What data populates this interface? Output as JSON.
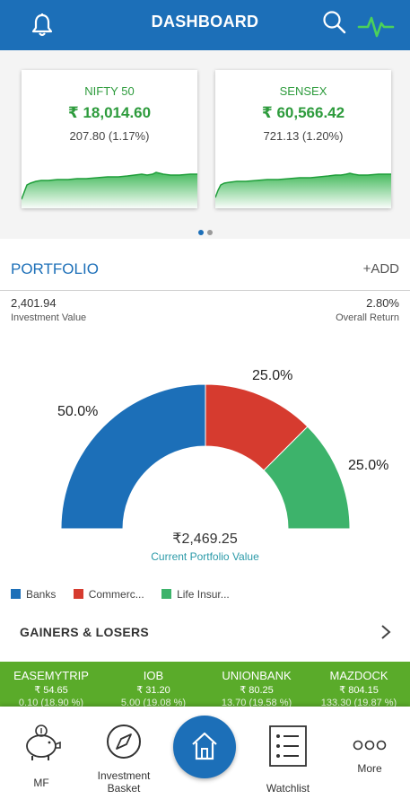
{
  "header": {
    "title": "DASHBOARD"
  },
  "indices": [
    {
      "name": "NIFTY 50",
      "value": "₹ 18,014.60",
      "change": "207.80 (1.17%)"
    },
    {
      "name": "SENSEX",
      "value": "₹ 60,566.42",
      "change": "721.13 (1.20%)"
    }
  ],
  "portfolio": {
    "title": "PORTFOLIO",
    "add_label": "+ADD",
    "investment_value": "2,401.94",
    "investment_label": "Investment Value",
    "overall_return": "2.80%",
    "overall_return_label": "Overall Return",
    "current_value": "₹2,469.25",
    "current_value_label": "Current Portfolio Value"
  },
  "chart_data": {
    "type": "pie",
    "variant": "half-donut",
    "categories": [
      "Banks",
      "Commerc...",
      "Life Insur..."
    ],
    "values": [
      50.0,
      25.0,
      25.0
    ],
    "labels": [
      "50.0%",
      "25.0%",
      "25.0%"
    ],
    "colors": [
      "#1c6fb8",
      "#d63b2f",
      "#3db36b"
    ],
    "legend_position": "bottom-left"
  },
  "gainers_losers": {
    "title": "GAINERS & LOSERS",
    "items": [
      {
        "name": "EASEMYTRIP",
        "price": "₹ 54.65",
        "change": "0.10 (18.90 %)"
      },
      {
        "name": "IOB",
        "price": "₹ 31.20",
        "change": "5.00 (19.08 %)"
      },
      {
        "name": "UNIONBANK",
        "price": "₹ 80.25",
        "change": "13.70 (19.58 %)"
      },
      {
        "name": "MAZDOCK",
        "price": "₹ 804.15",
        "change": "133.30 (19.87 %)"
      }
    ]
  },
  "bottom_nav": {
    "mf": "MF",
    "investment_basket": "Investment Basket",
    "watchlist": "Watchlist",
    "more": "More"
  }
}
